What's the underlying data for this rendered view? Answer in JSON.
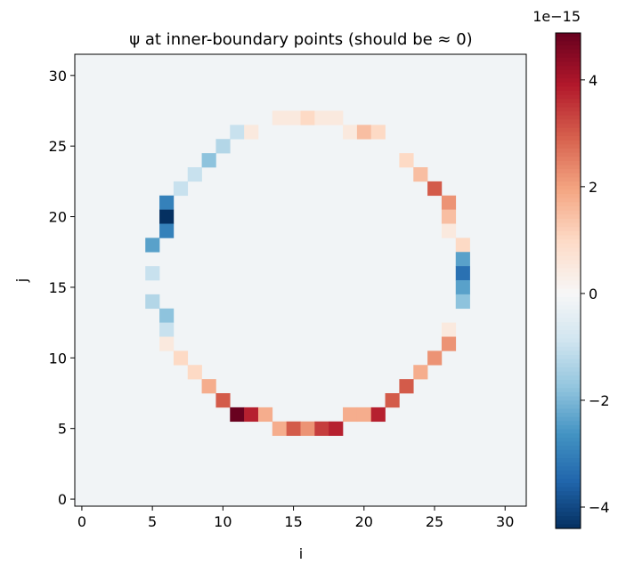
{
  "chart_data": {
    "type": "heatmap",
    "title": "ψ at inner-boundary points (should be ≈ 0)",
    "xlabel": "i",
    "ylabel": "j",
    "xlim": [
      -0.5,
      31.5
    ],
    "ylim": [
      -0.5,
      31.5
    ],
    "xticks": [
      "0",
      "5",
      "10",
      "15",
      "20",
      "25",
      "30"
    ],
    "yticks": [
      "0",
      "5",
      "10",
      "15",
      "20",
      "25",
      "30"
    ],
    "colormap": "RdBu_r",
    "background_value": -0.15,
    "colorbar": {
      "range": [
        -4.4,
        4.88
      ],
      "ticks": [
        "−4",
        "−2",
        "0",
        "2",
        "4"
      ],
      "tick_values": [
        -4,
        -2,
        0,
        2,
        4
      ],
      "offset_label": "1e−15"
    },
    "cells": [
      [
        14,
        27,
        0.5
      ],
      [
        15,
        27,
        0.5
      ],
      [
        16,
        27,
        1.0
      ],
      [
        17,
        27,
        0.5
      ],
      [
        18,
        27,
        0.5
      ],
      [
        11,
        26,
        -1.0
      ],
      [
        12,
        26,
        0.5
      ],
      [
        19,
        26,
        0.5
      ],
      [
        20,
        26,
        1.5
      ],
      [
        21,
        26,
        1.0
      ],
      [
        10,
        25,
        -1.3
      ],
      [
        9,
        24,
        -1.8
      ],
      [
        23,
        24,
        1.0
      ],
      [
        8,
        23,
        -1.0
      ],
      [
        24,
        23,
        1.5
      ],
      [
        7,
        22,
        -1.0
      ],
      [
        25,
        22,
        3.0
      ],
      [
        6,
        21,
        -3.0
      ],
      [
        26,
        21,
        2.2
      ],
      [
        6,
        20,
        -4.4
      ],
      [
        26,
        20,
        1.5
      ],
      [
        6,
        19,
        -3.0
      ],
      [
        26,
        19,
        0.5
      ],
      [
        5,
        18,
        -2.4
      ],
      [
        27,
        18,
        1.0
      ],
      [
        27,
        17,
        -2.4
      ],
      [
        5,
        16,
        -1.0
      ],
      [
        27,
        16,
        -3.3
      ],
      [
        27,
        15,
        -2.4
      ],
      [
        5,
        14,
        -1.3
      ],
      [
        27,
        14,
        -1.8
      ],
      [
        6,
        13,
        -1.8
      ],
      [
        6,
        12,
        -1.0
      ],
      [
        26,
        12,
        0.5
      ],
      [
        6,
        11,
        0.5
      ],
      [
        26,
        11,
        2.2
      ],
      [
        7,
        10,
        1.0
      ],
      [
        25,
        10,
        2.2
      ],
      [
        8,
        9,
        1.0
      ],
      [
        24,
        9,
        1.8
      ],
      [
        9,
        8,
        1.8
      ],
      [
        23,
        8,
        3.0
      ],
      [
        10,
        7,
        3.0
      ],
      [
        22,
        7,
        3.0
      ],
      [
        11,
        6,
        4.85
      ],
      [
        12,
        6,
        3.8
      ],
      [
        13,
        6,
        1.8
      ],
      [
        19,
        6,
        1.8
      ],
      [
        20,
        6,
        1.8
      ],
      [
        21,
        6,
        3.8
      ],
      [
        14,
        5,
        1.8
      ],
      [
        15,
        5,
        3.0
      ],
      [
        16,
        5,
        2.2
      ],
      [
        17,
        5,
        3.4
      ],
      [
        18,
        5,
        3.8
      ]
    ]
  }
}
